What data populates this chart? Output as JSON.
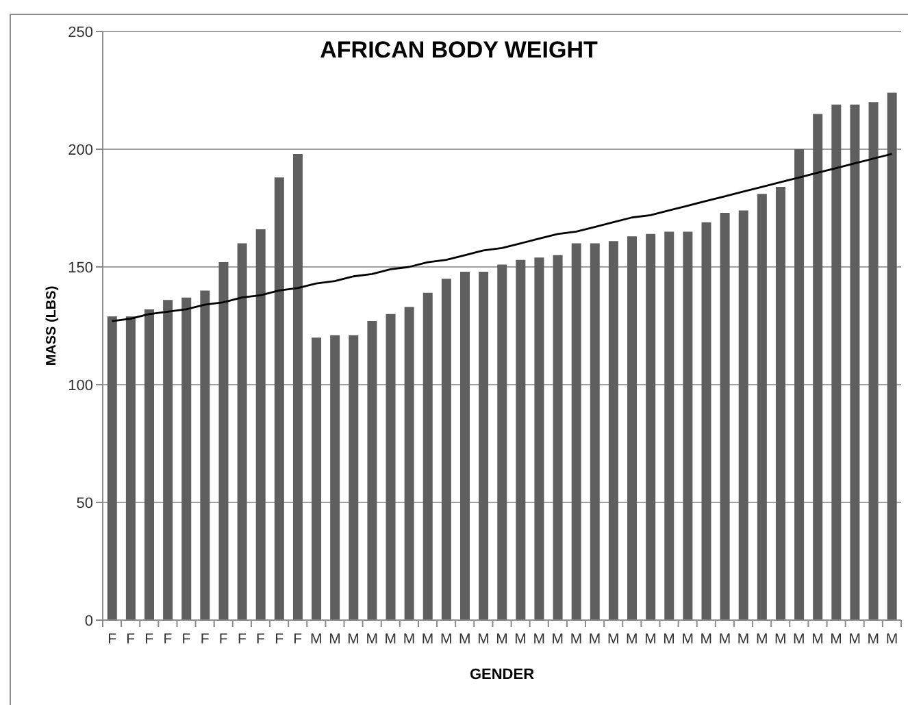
{
  "chart_data": {
    "type": "bar",
    "title": "AFRICAN BODY WEIGHT",
    "xlabel": "GENDER",
    "ylabel": "MASS (LBS)",
    "categories": [
      "F",
      "F",
      "F",
      "F",
      "F",
      "F",
      "F",
      "F",
      "F",
      "F",
      "F",
      "M",
      "M",
      "M",
      "M",
      "M",
      "M",
      "M",
      "M",
      "M",
      "M",
      "M",
      "M",
      "M",
      "M",
      "M",
      "M",
      "M",
      "M",
      "M",
      "M",
      "M",
      "M",
      "M",
      "M",
      "M",
      "M",
      "M",
      "M",
      "M",
      "M",
      "M",
      "M"
    ],
    "series": [
      {
        "color": "#5f5f5f",
        "values": [
          129,
          129,
          132,
          136,
          137,
          140,
          152,
          160,
          166,
          188,
          198,
          120,
          121,
          121,
          127,
          130,
          133,
          139,
          145,
          148,
          148,
          151,
          153,
          154,
          155,
          160,
          160,
          161,
          163,
          164,
          165,
          165,
          169,
          173,
          174,
          181,
          184,
          200,
          215,
          219,
          219,
          220,
          224
        ]
      },
      {
        "type": "line",
        "color": "#000000",
        "values": [
          127,
          128,
          130,
          131,
          132,
          134,
          135,
          137,
          138,
          140,
          141,
          143,
          144,
          146,
          147,
          149,
          150,
          152,
          153,
          155,
          157,
          158,
          160,
          162,
          164,
          165,
          167,
          169,
          171,
          172,
          174,
          176,
          178,
          180,
          182,
          184,
          186,
          188,
          190,
          192,
          194,
          196,
          198
        ]
      }
    ],
    "ylim": [
      0,
      250
    ],
    "yticks": [
      0,
      50,
      100,
      150,
      200,
      250
    ],
    "grid": "y"
  }
}
